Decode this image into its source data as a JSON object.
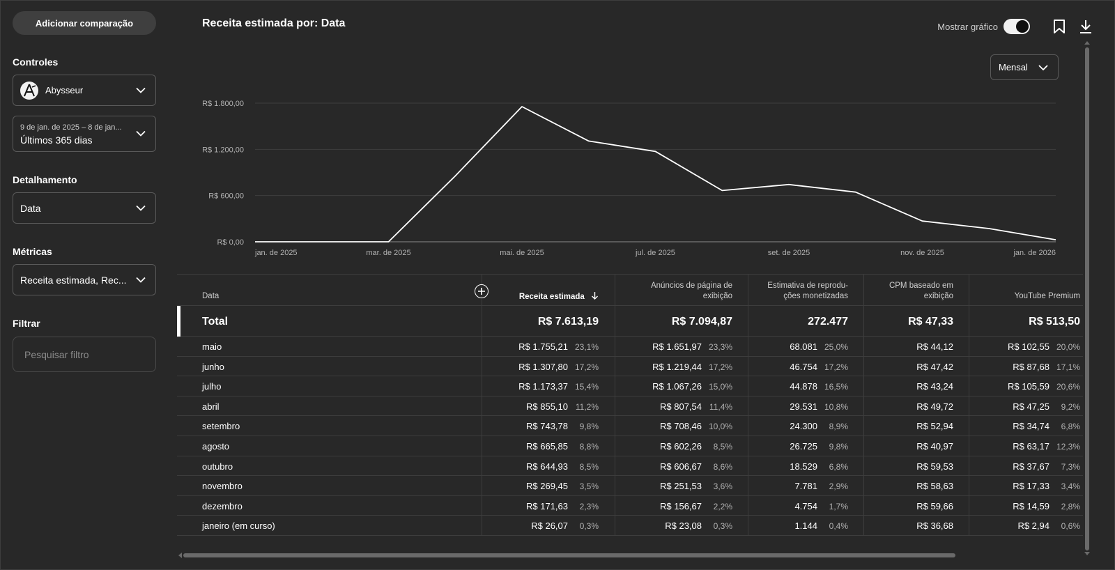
{
  "sidebar": {
    "compare_button": "Adicionar comparação",
    "controls_heading": "Controles",
    "channel": {
      "name": "Abysseur"
    },
    "date_range": {
      "range_text": "9 de jan. de 2025 – 8 de jan...",
      "preset": "Últimos 365 dias"
    },
    "breakdown_heading": "Detalhamento",
    "breakdown_value": "Data",
    "metrics_heading": "Métricas",
    "metrics_value": "Receita estimada, Rec...",
    "filter_heading": "Filtrar",
    "filter_placeholder": "Pesquisar filtro"
  },
  "header": {
    "title": "Receita estimada por: Data",
    "show_chart_label": "Mostrar gráfico",
    "show_chart_on": true,
    "period": "Mensal"
  },
  "chart_data": {
    "type": "line",
    "x": [
      "2025-01",
      "2025-02",
      "2025-03",
      "2025-04",
      "2025-05",
      "2025-06",
      "2025-07",
      "2025-08",
      "2025-09",
      "2025-10",
      "2025-11",
      "2025-12",
      "2026-01"
    ],
    "x_tick_labels": [
      "jan. de 2025",
      "mar. de 2025",
      "mai. de 2025",
      "jul. de 2025",
      "set. de 2025",
      "nov. de 2025",
      "jan. de 2026"
    ],
    "series": [
      {
        "values": [
          0,
          0,
          0,
          855.1,
          1755.21,
          1307.8,
          1173.37,
          665.85,
          743.78,
          644.93,
          269.45,
          171.63,
          26.07
        ]
      }
    ],
    "y_tick_labels": [
      "R$ 0,00",
      "R$ 600,00",
      "R$ 1.200,00",
      "R$ 1.800,00"
    ],
    "y_ticks": [
      0,
      600,
      1200,
      1800
    ],
    "ylim": [
      0,
      1800
    ],
    "grid": true,
    "line_color": "#ffffff"
  },
  "table": {
    "columns": [
      {
        "label": "Data"
      },
      {
        "label": "Receita estimada",
        "sorted": true
      },
      {
        "label_line1": "Anúncios de página de",
        "label_line2": "exibição"
      },
      {
        "label_line1": "Estimativa de reprodu-",
        "label_line2": "ções monetizadas"
      },
      {
        "label_line1": "CPM baseado em",
        "label_line2": "exibição"
      },
      {
        "label": "YouTube Premium"
      }
    ],
    "total": {
      "label": "Total",
      "revenue": "R$ 7.613,19",
      "display_ads": "R$ 7.094,87",
      "monetized_playbacks": "272.477",
      "cpm": "R$ 47,33",
      "premium": "R$ 513,50"
    },
    "rows": [
      {
        "label": "maio",
        "revenue": "R$ 1.755,21",
        "revenue_pct": "23,1%",
        "ads": "R$ 1.651,97",
        "ads_pct": "23,3%",
        "plays": "68.081",
        "plays_pct": "25,0%",
        "cpm": "R$ 44,12",
        "premium": "R$ 102,55",
        "premium_pct": "20,0%"
      },
      {
        "label": "junho",
        "revenue": "R$ 1.307,80",
        "revenue_pct": "17,2%",
        "ads": "R$ 1.219,44",
        "ads_pct": "17,2%",
        "plays": "46.754",
        "plays_pct": "17,2%",
        "cpm": "R$ 47,42",
        "premium": "R$ 87,68",
        "premium_pct": "17,1%"
      },
      {
        "label": "julho",
        "revenue": "R$ 1.173,37",
        "revenue_pct": "15,4%",
        "ads": "R$ 1.067,26",
        "ads_pct": "15,0%",
        "plays": "44.878",
        "plays_pct": "16,5%",
        "cpm": "R$ 43,24",
        "premium": "R$ 105,59",
        "premium_pct": "20,6%"
      },
      {
        "label": "abril",
        "revenue": "R$ 855,10",
        "revenue_pct": "11,2%",
        "ads": "R$ 807,54",
        "ads_pct": "11,4%",
        "plays": "29.531",
        "plays_pct": "10,8%",
        "cpm": "R$ 49,72",
        "premium": "R$ 47,25",
        "premium_pct": "9,2%"
      },
      {
        "label": "setembro",
        "revenue": "R$ 743,78",
        "revenue_pct": "9,8%",
        "ads": "R$ 708,46",
        "ads_pct": "10,0%",
        "plays": "24.300",
        "plays_pct": "8,9%",
        "cpm": "R$ 52,94",
        "premium": "R$ 34,74",
        "premium_pct": "6,8%"
      },
      {
        "label": "agosto",
        "revenue": "R$ 665,85",
        "revenue_pct": "8,8%",
        "ads": "R$ 602,26",
        "ads_pct": "8,5%",
        "plays": "26.725",
        "plays_pct": "9,8%",
        "cpm": "R$ 40,97",
        "premium": "R$ 63,17",
        "premium_pct": "12,3%"
      },
      {
        "label": "outubro",
        "revenue": "R$ 644,93",
        "revenue_pct": "8,5%",
        "ads": "R$ 606,67",
        "ads_pct": "8,6%",
        "plays": "18.529",
        "plays_pct": "6,8%",
        "cpm": "R$ 59,53",
        "premium": "R$ 37,67",
        "premium_pct": "7,3%"
      },
      {
        "label": "novembro",
        "revenue": "R$ 269,45",
        "revenue_pct": "3,5%",
        "ads": "R$ 251,53",
        "ads_pct": "3,6%",
        "plays": "7.781",
        "plays_pct": "2,9%",
        "cpm": "R$ 58,63",
        "premium": "R$ 17,33",
        "premium_pct": "3,4%"
      },
      {
        "label": "dezembro",
        "revenue": "R$ 171,63",
        "revenue_pct": "2,3%",
        "ads": "R$ 156,67",
        "ads_pct": "2,2%",
        "plays": "4.754",
        "plays_pct": "1,7%",
        "cpm": "R$ 59,66",
        "premium": "R$ 14,59",
        "premium_pct": "2,8%"
      },
      {
        "label": "janeiro (em curso)",
        "revenue": "R$ 26,07",
        "revenue_pct": "0,3%",
        "ads": "R$ 23,08",
        "ads_pct": "0,3%",
        "plays": "1.144",
        "plays_pct": "0,4%",
        "cpm": "R$ 36,68",
        "premium": "R$ 2,94",
        "premium_pct": "0,6%"
      }
    ]
  },
  "icons": {
    "chevron": "chevron-down-icon",
    "bookmark": "bookmark-icon",
    "download": "download-icon",
    "add": "add-circle-icon",
    "sort": "arrow-down-icon"
  }
}
